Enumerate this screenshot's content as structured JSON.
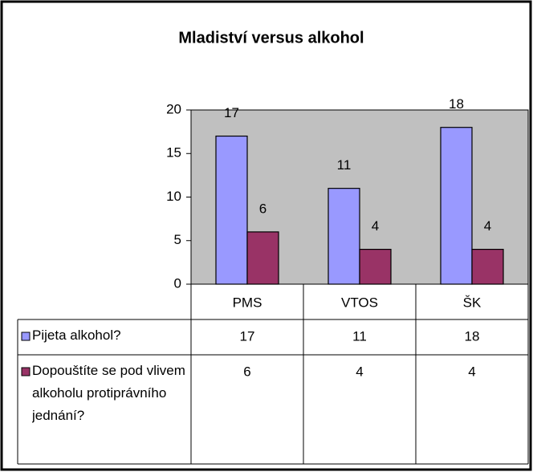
{
  "chart_data": {
    "type": "bar",
    "title": "Mladiství versus alkohol",
    "categories": [
      "PMS",
      "VTOS",
      "ŠK"
    ],
    "series": [
      {
        "name": "Pijeta alkohol?",
        "color": "#9999ff",
        "values": [
          17,
          11,
          18
        ]
      },
      {
        "name": "Dopouštíte se pod vlivem alkoholu protiprávního jednání?",
        "color": "#993366",
        "values": [
          6,
          4,
          4
        ]
      }
    ],
    "ylim": [
      0,
      20
    ],
    "yticks": [
      0,
      5,
      10,
      15,
      20
    ],
    "grid": false,
    "plot_background": "#c0c0c0",
    "data_table": true
  }
}
